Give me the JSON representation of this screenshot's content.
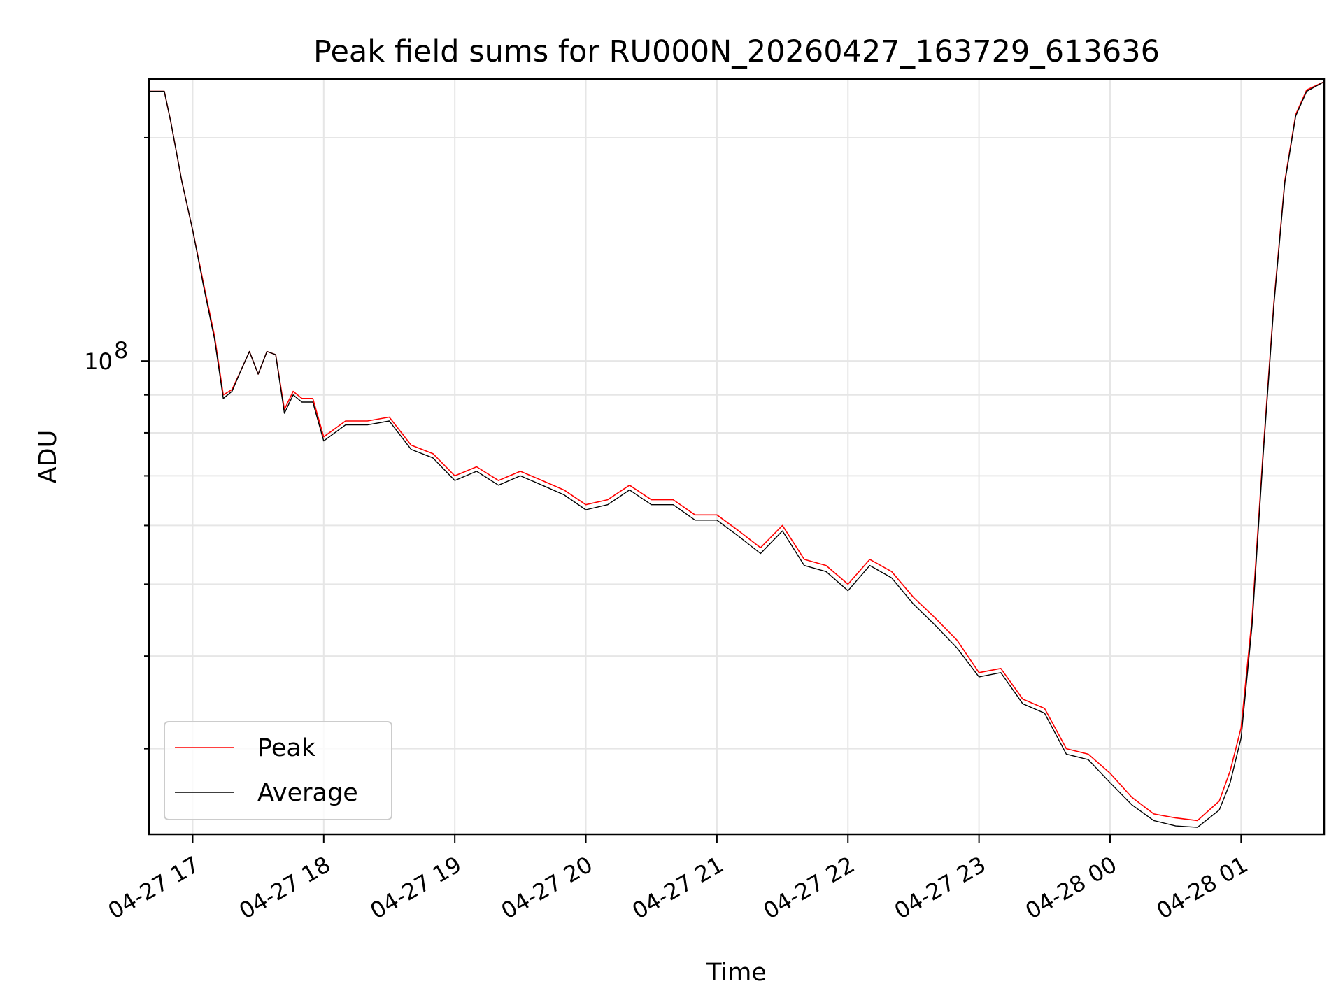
{
  "chart_data": {
    "type": "line",
    "title": "Peak field sums for RU000N_20260427_163729_613636",
    "xlabel": "Time",
    "ylabel": "ADU",
    "y_scale": "log",
    "ylim": [
      23000000,
      240000000
    ],
    "xlim": [
      "2026-04-27 16:40",
      "2026-04-28 01:38"
    ],
    "grid": true,
    "legend_position": "lower-left",
    "x_ticks": [
      {
        "value": "2026-04-27 17:00",
        "label": "04-27 17"
      },
      {
        "value": "2026-04-27 18:00",
        "label": "04-27 18"
      },
      {
        "value": "2026-04-27 19:00",
        "label": "04-27 19"
      },
      {
        "value": "2026-04-27 20:00",
        "label": "04-27 20"
      },
      {
        "value": "2026-04-27 21:00",
        "label": "04-27 21"
      },
      {
        "value": "2026-04-27 22:00",
        "label": "04-27 22"
      },
      {
        "value": "2026-04-27 23:00",
        "label": "04-27 23"
      },
      {
        "value": "2026-04-28 00:00",
        "label": "04-28 00"
      },
      {
        "value": "2026-04-28 01:00",
        "label": "04-28 01"
      }
    ],
    "y_ticks": [
      {
        "value": 100000000,
        "label": "10^8"
      }
    ],
    "x": [
      "2026-04-27 16:40",
      "2026-04-27 16:47",
      "2026-04-27 16:50",
      "2026-04-27 16:55",
      "2026-04-27 17:00",
      "2026-04-27 17:05",
      "2026-04-27 17:10",
      "2026-04-27 17:14",
      "2026-04-27 17:18",
      "2026-04-27 17:22",
      "2026-04-27 17:26",
      "2026-04-27 17:30",
      "2026-04-27 17:34",
      "2026-04-27 17:38",
      "2026-04-27 17:42",
      "2026-04-27 17:46",
      "2026-04-27 17:50",
      "2026-04-27 17:55",
      "2026-04-27 18:00",
      "2026-04-27 18:10",
      "2026-04-27 18:20",
      "2026-04-27 18:30",
      "2026-04-27 18:40",
      "2026-04-27 18:50",
      "2026-04-27 19:00",
      "2026-04-27 19:10",
      "2026-04-27 19:20",
      "2026-04-27 19:30",
      "2026-04-27 19:40",
      "2026-04-27 19:50",
      "2026-04-27 20:00",
      "2026-04-27 20:10",
      "2026-04-27 20:20",
      "2026-04-27 20:30",
      "2026-04-27 20:40",
      "2026-04-27 20:50",
      "2026-04-27 21:00",
      "2026-04-27 21:10",
      "2026-04-27 21:20",
      "2026-04-27 21:30",
      "2026-04-27 21:40",
      "2026-04-27 21:50",
      "2026-04-27 22:00",
      "2026-04-27 22:10",
      "2026-04-27 22:20",
      "2026-04-27 22:30",
      "2026-04-27 22:40",
      "2026-04-27 22:50",
      "2026-04-27 23:00",
      "2026-04-27 23:10",
      "2026-04-27 23:20",
      "2026-04-27 23:30",
      "2026-04-27 23:40",
      "2026-04-27 23:50",
      "2026-04-28 00:00",
      "2026-04-28 00:10",
      "2026-04-28 00:20",
      "2026-04-28 00:30",
      "2026-04-28 00:40",
      "2026-04-28 00:50",
      "2026-04-28 00:55",
      "2026-04-28 01:00",
      "2026-04-28 01:05",
      "2026-04-28 01:10",
      "2026-04-28 01:15",
      "2026-04-28 01:20",
      "2026-04-28 01:25",
      "2026-04-28 01:30",
      "2026-04-28 01:38"
    ],
    "series": [
      {
        "name": "Peak",
        "color": "#ff0000",
        "values": [
          231000000,
          231000000,
          210000000,
          175000000,
          150000000,
          127000000,
          108000000,
          90000000,
          91500000,
          97000000,
          103000000,
          96000000,
          103000000,
          102000000,
          86000000,
          91000000,
          89000000,
          89000000,
          79000000,
          83000000,
          83000000,
          84000000,
          77000000,
          75000000,
          70000000,
          72000000,
          69000000,
          71000000,
          69000000,
          67000000,
          64000000,
          65000000,
          68000000,
          65000000,
          65000000,
          62000000,
          62000000,
          59000000,
          56000000,
          60000000,
          54000000,
          53000000,
          50000000,
          54000000,
          52000000,
          48000000,
          45000000,
          42000000,
          38000000,
          38500000,
          35000000,
          34000000,
          30000000,
          29500000,
          27800000,
          25800000,
          24500000,
          24200000,
          24000000,
          25500000,
          28000000,
          32000000,
          45000000,
          75000000,
          120000000,
          175000000,
          215000000,
          232000000,
          238000000
        ]
      },
      {
        "name": "Average",
        "color": "#000000",
        "values": [
          231000000,
          231000000,
          210000000,
          175000000,
          150000000,
          126000000,
          107000000,
          89000000,
          91000000,
          97000000,
          103000000,
          96000000,
          103000000,
          102000000,
          85000000,
          90000000,
          88000000,
          88000000,
          78000000,
          82000000,
          82000000,
          83000000,
          76000000,
          74000000,
          69000000,
          71000000,
          68000000,
          70000000,
          68000000,
          66000000,
          63000000,
          64000000,
          67000000,
          64000000,
          64000000,
          61000000,
          61000000,
          58000000,
          55000000,
          59000000,
          53000000,
          52000000,
          49000000,
          53000000,
          51000000,
          47000000,
          44000000,
          41000000,
          37500000,
          38000000,
          34500000,
          33500000,
          29500000,
          29000000,
          27000000,
          25200000,
          24000000,
          23600000,
          23500000,
          24800000,
          27000000,
          31000000,
          44000000,
          74000000,
          119000000,
          174000000,
          214000000,
          231000000,
          238000000
        ]
      }
    ]
  }
}
